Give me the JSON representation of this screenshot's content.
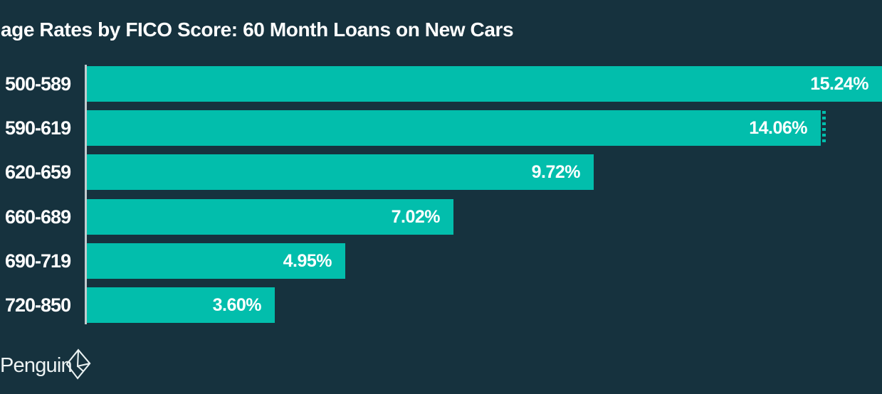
{
  "chart_data": {
    "type": "bar",
    "orientation": "horizontal",
    "title": "age Rates by FICO Score: 60 Month Loans on New Cars",
    "categories": [
      "500-589",
      "590-619",
      "620-659",
      "660-689",
      "690-719",
      "720-850"
    ],
    "values": [
      15.24,
      14.06,
      9.72,
      7.02,
      4.95,
      3.6
    ],
    "value_labels": [
      "15.24%",
      "14.06%",
      "9.72%",
      "7.02%",
      "4.95%",
      "3.60%"
    ],
    "xlabel": "",
    "ylabel": "",
    "xlim": [
      0,
      14.72
    ],
    "grid": false,
    "legend_position": "none",
    "first_bar_clipped_at_right_edge": true,
    "dashed_right_edge_bar_index": 1,
    "bar_color": "#02BEAC",
    "background_color": "#16323E",
    "axis_line_color": "#C3CBCE",
    "label_color": "#FFFFFF"
  },
  "footer": {
    "brand_text": "Penguin",
    "logo_icon": "valuepenguin-diamond-logo"
  }
}
